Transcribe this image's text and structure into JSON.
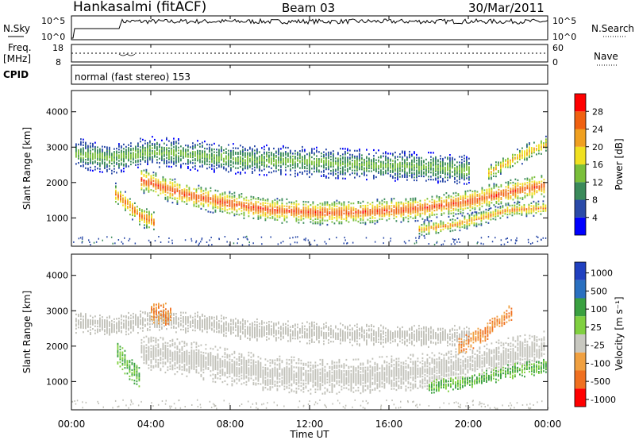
{
  "header": {
    "station": "Hankasalmi (fitACF)",
    "beam": "Beam 03",
    "date": "30/Mar/2011"
  },
  "status_panels": {
    "nsky_label": "N.Sky",
    "nsky_ticks": [
      "10^5",
      "10^0"
    ],
    "nsearch_label": "N.Search",
    "nsearch_ticks": [
      "10^5",
      "10^0"
    ],
    "freq_label": "Freq.",
    "freq_unit": "[MHz]",
    "freq_ticks": [
      "18",
      "8"
    ],
    "nave_label": "Nave",
    "nave_ticks": [
      "60",
      "0"
    ],
    "cpid_label": "CPID",
    "cpid_value": "normal (fast stereo) 153"
  },
  "colors": {
    "power_scale": [
      "#0000ff",
      "#2a4aa8",
      "#3a8a5a",
      "#7abf3a",
      "#f0e020",
      "#f0a020",
      "#f06010",
      "#ff0000"
    ],
    "velocity_scale": [
      "#2040c0",
      "#2a70c0",
      "#3aa040",
      "#80d040",
      "#c8c8c0",
      "#f0a040",
      "#f07020",
      "#ff0000"
    ],
    "ground_scatter": "#c0c0b8"
  },
  "chart_data": [
    {
      "type": "heatmap",
      "title": "Power",
      "ylabel": "Slant Range [km]",
      "xlabel": "Time UT",
      "x_ticks": [
        "00:00",
        "04:00",
        "08:00",
        "12:00",
        "16:00",
        "20:00",
        "00:00"
      ],
      "y_ticks": [
        1000,
        2000,
        3000,
        4000
      ],
      "ylim": [
        200,
        4600
      ],
      "xlim_hours": [
        0,
        24
      ],
      "colorbar": {
        "label": "Power [dB]",
        "ticks": [
          4,
          8,
          12,
          16,
          20,
          24,
          28
        ],
        "range": [
          0,
          32
        ]
      },
      "bands": [
        {
          "name": "main-E-F-echo",
          "t": [
            3.5,
            4.5,
            6,
            8,
            10,
            12,
            14,
            16,
            18,
            20,
            22,
            23.9
          ],
          "center_km": [
            2100,
            1900,
            1650,
            1420,
            1250,
            1180,
            1180,
            1230,
            1320,
            1500,
            1750,
            1950
          ],
          "width_km": 350,
          "peak_db": 28
        },
        {
          "name": "upper-echo",
          "t": [
            0.2,
            2,
            4,
            6,
            8,
            10,
            12,
            14,
            16,
            18,
            20
          ],
          "center_km": [
            2850,
            2700,
            2900,
            2800,
            2700,
            2650,
            2600,
            2550,
            2500,
            2450,
            2400
          ],
          "width_km": 420,
          "peak_db": 14
        },
        {
          "name": "dawn-echo",
          "t": [
            2.2,
            2.8,
            3.4,
            4.2
          ],
          "center_km": [
            1700,
            1400,
            1100,
            900
          ],
          "width_km": 300,
          "peak_db": 26
        },
        {
          "name": "late-echo",
          "t": [
            17.5,
            19,
            20.5,
            22,
            23.9
          ],
          "center_km": [
            700,
            800,
            1000,
            1250,
            1300
          ],
          "width_km": 200,
          "peak_db": 24
        },
        {
          "name": "evening-high",
          "t": [
            21,
            22,
            23,
            23.9
          ],
          "center_km": [
            2300,
            2600,
            2900,
            3100
          ],
          "width_km": 250,
          "peak_db": 22
        }
      ]
    },
    {
      "type": "heatmap",
      "title": "Velocity",
      "ylabel": "Slant Range [km]",
      "xlabel": "Time UT",
      "x_ticks": [
        "00:00",
        "04:00",
        "08:00",
        "12:00",
        "16:00",
        "20:00",
        "00:00"
      ],
      "y_ticks": [
        1000,
        2000,
        3000,
        4000
      ],
      "ylim": [
        200,
        4600
      ],
      "xlim_hours": [
        0,
        24
      ],
      "colorbar": {
        "label": "Velocity [m s⁻¹]",
        "ticks": [
          "1000",
          "500",
          "100",
          "25",
          "-25",
          "-100",
          "-500",
          "-1000"
        ]
      },
      "bands": [
        {
          "name": "ground-scatter-main",
          "t": [
            3.5,
            6,
            8,
            10,
            12,
            14,
            16,
            18,
            20,
            22,
            23.9
          ],
          "center_km": [
            1900,
            1650,
            1420,
            1250,
            1180,
            1180,
            1230,
            1320,
            1500,
            1750,
            1950
          ],
          "width_km": 500,
          "velocity": 0
        },
        {
          "name": "ground-scatter-upper",
          "t": [
            0.2,
            2,
            4,
            6,
            8,
            10,
            12,
            14,
            16,
            18,
            20
          ],
          "center_km": [
            2700,
            2600,
            2750,
            2700,
            2550,
            2450,
            2400,
            2350,
            2300,
            2300,
            2300
          ],
          "width_km": 300,
          "velocity": 0
        },
        {
          "name": "dawn-positive",
          "t": [
            2.3,
            2.9,
            3.5
          ],
          "center_km": [
            1800,
            1400,
            1100
          ],
          "width_km": 350,
          "velocity": 120
        },
        {
          "name": "dawn-negative",
          "t": [
            4.0,
            5.0
          ],
          "center_km": [
            3000,
            2900
          ],
          "width_km": 300,
          "velocity": -200
        },
        {
          "name": "evening-negative",
          "t": [
            19.5,
            20.5,
            21.5,
            22.2
          ],
          "center_km": [
            2000,
            2300,
            2700,
            3000
          ],
          "width_km": 250,
          "velocity": -300
        },
        {
          "name": "late-mixed",
          "t": [
            18,
            20,
            22,
            23.9
          ],
          "center_km": [
            900,
            1000,
            1300,
            1450
          ],
          "width_km": 200,
          "velocity": 110
        }
      ]
    }
  ]
}
